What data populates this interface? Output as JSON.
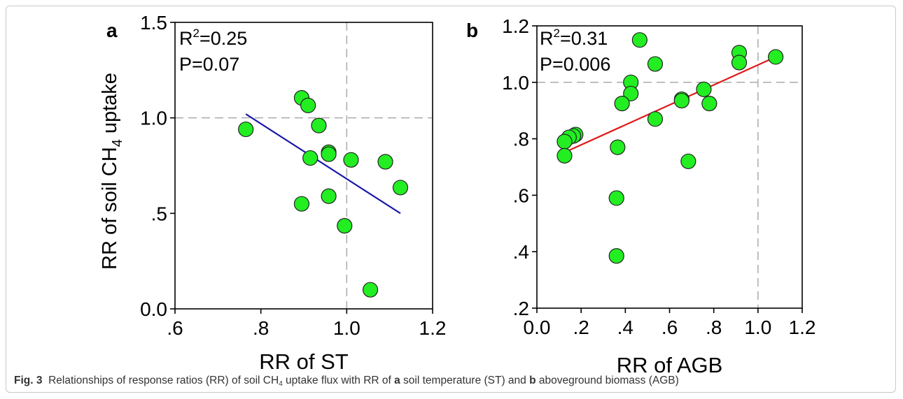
{
  "figure": {
    "ylabel_main": "RR of  soil CH",
    "ylabel_sub": "4",
    "ylabel_tail": "  uptake"
  },
  "caption": {
    "fig_label": "Fig. 3",
    "text_1": "Relationships of response ratios (RR) of soil CH",
    "sub": "4",
    "text_2": " uptake flux with RR of ",
    "a_label": "a",
    "text_3": " soil temperature (ST) and ",
    "b_label": "b",
    "text_4": " aboveground biomass (AGB)"
  },
  "colors": {
    "marker_fill": "#22ee22",
    "marker_edge": "#222222",
    "fit_a": "#1a1aaa",
    "fit_b": "#e01818",
    "refline": "#aaaaaa"
  },
  "chart_data": [
    {
      "type": "scatter",
      "panel_label": "a",
      "xlabel": "RR of ST",
      "ylabel": "RR of soil CH4 uptake",
      "xlim": [
        0.6,
        1.2
      ],
      "ylim": [
        0.0,
        1.5
      ],
      "xticks": [
        0.6,
        0.8,
        1.0,
        1.2
      ],
      "xtick_labels": [
        ".6",
        ".8",
        "1.0",
        "1.2"
      ],
      "yticks": [
        0.0,
        0.5,
        1.0,
        1.5
      ],
      "ytick_labels": [
        "0.0",
        ".5",
        "1.0",
        "1.5"
      ],
      "annotations": [
        "R2=0.25",
        "P=0.07"
      ],
      "r2_text": "R",
      "r2_sup": "2",
      "r2_value": "=0.25",
      "p_text": "P=0.07",
      "reference_lines": {
        "x": 1.0,
        "y": 1.0
      },
      "fit_line": {
        "x": [
          0.765,
          1.125
        ],
        "y": [
          1.02,
          0.5
        ]
      },
      "points": [
        {
          "x": 0.765,
          "y": 0.94
        },
        {
          "x": 0.895,
          "y": 1.105
        },
        {
          "x": 0.91,
          "y": 1.065
        },
        {
          "x": 0.935,
          "y": 0.96
        },
        {
          "x": 0.915,
          "y": 0.79
        },
        {
          "x": 0.958,
          "y": 0.82
        },
        {
          "x": 0.958,
          "y": 0.81
        },
        {
          "x": 1.01,
          "y": 0.78
        },
        {
          "x": 1.09,
          "y": 0.77
        },
        {
          "x": 1.125,
          "y": 0.635
        },
        {
          "x": 0.895,
          "y": 0.55
        },
        {
          "x": 0.958,
          "y": 0.59
        },
        {
          "x": 0.995,
          "y": 0.435
        },
        {
          "x": 1.055,
          "y": 0.1
        }
      ]
    },
    {
      "type": "scatter",
      "panel_label": "b",
      "xlabel": "RR of AGB",
      "ylabel": "",
      "xlim": [
        0.0,
        1.2
      ],
      "ylim": [
        0.2,
        1.2
      ],
      "xticks": [
        0.0,
        0.2,
        0.4,
        0.6,
        0.8,
        1.0,
        1.2
      ],
      "xtick_labels": [
        "0.0",
        ".2",
        ".4",
        ".6",
        ".8",
        "1.0",
        "1.2"
      ],
      "yticks": [
        0.2,
        0.4,
        0.6,
        0.8,
        1.0,
        1.2
      ],
      "ytick_labels": [
        ".2",
        ".4",
        ".6",
        ".8",
        "1.0",
        "1.2"
      ],
      "annotations": [
        "R2=0.31",
        "P=0.006"
      ],
      "r2_text": "R",
      "r2_sup": "2",
      "r2_value": "=0.31",
      "p_text": "P=0.006",
      "reference_lines": {
        "x": 1.0,
        "y": 1.0
      },
      "fit_line": {
        "x": [
          0.12,
          1.08
        ],
        "y": [
          0.75,
          1.09
        ]
      },
      "points": [
        {
          "x": 0.465,
          "y": 1.15
        },
        {
          "x": 0.915,
          "y": 1.105
        },
        {
          "x": 1.08,
          "y": 1.09
        },
        {
          "x": 0.915,
          "y": 1.07
        },
        {
          "x": 0.535,
          "y": 1.065
        },
        {
          "x": 0.425,
          "y": 1.0
        },
        {
          "x": 0.755,
          "y": 0.975
        },
        {
          "x": 0.425,
          "y": 0.96
        },
        {
          "x": 0.655,
          "y": 0.94
        },
        {
          "x": 0.655,
          "y": 0.935
        },
        {
          "x": 0.385,
          "y": 0.925
        },
        {
          "x": 0.78,
          "y": 0.925
        },
        {
          "x": 0.535,
          "y": 0.87
        },
        {
          "x": 0.175,
          "y": 0.815
        },
        {
          "x": 0.165,
          "y": 0.81
        },
        {
          "x": 0.145,
          "y": 0.805
        },
        {
          "x": 0.125,
          "y": 0.79
        },
        {
          "x": 0.365,
          "y": 0.77
        },
        {
          "x": 0.125,
          "y": 0.74
        },
        {
          "x": 0.685,
          "y": 0.72
        },
        {
          "x": 0.36,
          "y": 0.59
        },
        {
          "x": 0.36,
          "y": 0.385
        }
      ]
    }
  ]
}
